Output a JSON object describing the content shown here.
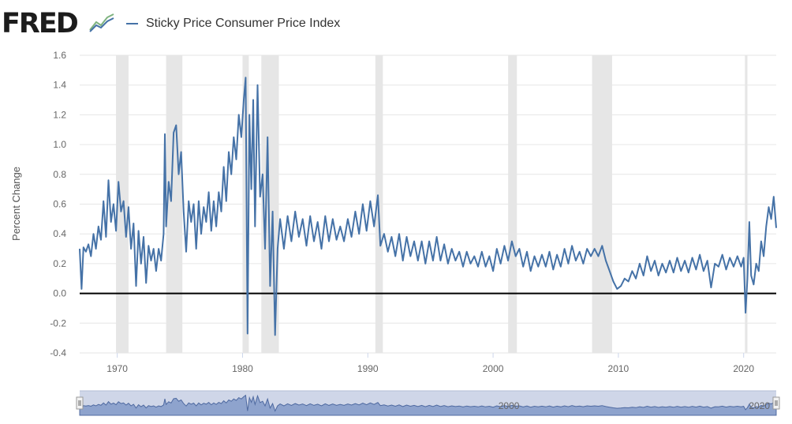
{
  "brand": {
    "logo_text": "FRED"
  },
  "colors": {
    "series": "#4572a7",
    "recession": "#e6e6e6",
    "zero_line": "#000000",
    "grid": "#e6e6e6",
    "navigator_bg": "#cfd6e8",
    "navigator_fill": "#7f97c7"
  },
  "chart_data": {
    "type": "line",
    "title": "",
    "xlabel": "",
    "ylabel": "Percent Change",
    "grid": true,
    "legend_position": "top-left",
    "xlim": [
      1967.0,
      2022.6
    ],
    "ylim": [
      -0.4,
      1.6
    ],
    "x_ticks": [
      1970,
      1980,
      1990,
      2000,
      2010,
      2020
    ],
    "y_ticks": [
      -0.4,
      -0.2,
      0.0,
      0.2,
      0.4,
      0.6,
      0.8,
      1.0,
      1.2,
      1.4,
      1.6
    ],
    "y_tick_labels": [
      "-0.4",
      "-0.2",
      "0.0",
      "0.2",
      "0.4",
      "0.6",
      "0.8",
      "1.0",
      "1.2",
      "1.4",
      "1.6"
    ],
    "recessions": [
      [
        1969.9,
        1970.9
      ],
      [
        1973.9,
        1975.2
      ],
      [
        1980.0,
        1980.5
      ],
      [
        1981.5,
        1982.9
      ],
      [
        1990.6,
        1991.2
      ],
      [
        2001.2,
        2001.9
      ],
      [
        2007.9,
        2009.5
      ],
      [
        2020.1,
        2020.3
      ]
    ],
    "navigator_labels": [
      "2000",
      "2020"
    ],
    "series": [
      {
        "name": "Sticky Price Consumer Price Index",
        "points": [
          [
            1967.0,
            0.3
          ],
          [
            1967.15,
            0.03
          ],
          [
            1967.3,
            0.31
          ],
          [
            1967.5,
            0.28
          ],
          [
            1967.7,
            0.33
          ],
          [
            1967.9,
            0.25
          ],
          [
            1968.1,
            0.4
          ],
          [
            1968.3,
            0.3
          ],
          [
            1968.5,
            0.45
          ],
          [
            1968.7,
            0.36
          ],
          [
            1968.9,
            0.62
          ],
          [
            1969.1,
            0.38
          ],
          [
            1969.3,
            0.76
          ],
          [
            1969.5,
            0.48
          ],
          [
            1969.7,
            0.6
          ],
          [
            1969.9,
            0.42
          ],
          [
            1970.1,
            0.75
          ],
          [
            1970.3,
            0.55
          ],
          [
            1970.5,
            0.62
          ],
          [
            1970.7,
            0.38
          ],
          [
            1970.9,
            0.58
          ],
          [
            1971.1,
            0.3
          ],
          [
            1971.3,
            0.47
          ],
          [
            1971.5,
            0.05
          ],
          [
            1971.7,
            0.42
          ],
          [
            1971.9,
            0.2
          ],
          [
            1972.1,
            0.38
          ],
          [
            1972.3,
            0.07
          ],
          [
            1972.5,
            0.32
          ],
          [
            1972.7,
            0.22
          ],
          [
            1972.9,
            0.3
          ],
          [
            1973.1,
            0.15
          ],
          [
            1973.3,
            0.3
          ],
          [
            1973.5,
            0.22
          ],
          [
            1973.7,
            0.4
          ],
          [
            1973.8,
            1.07
          ],
          [
            1973.9,
            0.45
          ],
          [
            1974.1,
            0.75
          ],
          [
            1974.3,
            0.62
          ],
          [
            1974.5,
            1.08
          ],
          [
            1974.7,
            1.13
          ],
          [
            1974.9,
            0.8
          ],
          [
            1975.1,
            0.95
          ],
          [
            1975.3,
            0.55
          ],
          [
            1975.5,
            0.28
          ],
          [
            1975.7,
            0.62
          ],
          [
            1975.9,
            0.48
          ],
          [
            1976.1,
            0.6
          ],
          [
            1976.3,
            0.3
          ],
          [
            1976.5,
            0.62
          ],
          [
            1976.7,
            0.4
          ],
          [
            1976.9,
            0.58
          ],
          [
            1977.1,
            0.48
          ],
          [
            1977.3,
            0.68
          ],
          [
            1977.5,
            0.42
          ],
          [
            1977.7,
            0.62
          ],
          [
            1977.9,
            0.45
          ],
          [
            1978.1,
            0.68
          ],
          [
            1978.3,
            0.55
          ],
          [
            1978.5,
            0.85
          ],
          [
            1978.7,
            0.62
          ],
          [
            1978.9,
            0.95
          ],
          [
            1979.1,
            0.8
          ],
          [
            1979.3,
            1.05
          ],
          [
            1979.5,
            0.9
          ],
          [
            1979.7,
            1.2
          ],
          [
            1979.9,
            1.05
          ],
          [
            1980.1,
            1.3
          ],
          [
            1980.25,
            1.45
          ],
          [
            1980.4,
            -0.27
          ],
          [
            1980.55,
            1.2
          ],
          [
            1980.7,
            0.7
          ],
          [
            1980.85,
            1.3
          ],
          [
            1981.0,
            0.45
          ],
          [
            1981.2,
            1.4
          ],
          [
            1981.4,
            0.65
          ],
          [
            1981.6,
            0.8
          ],
          [
            1981.8,
            0.3
          ],
          [
            1982.0,
            1.05
          ],
          [
            1982.2,
            0.05
          ],
          [
            1982.4,
            0.55
          ],
          [
            1982.6,
            -0.28
          ],
          [
            1982.8,
            0.3
          ],
          [
            1983.0,
            0.5
          ],
          [
            1983.3,
            0.3
          ],
          [
            1983.6,
            0.52
          ],
          [
            1983.9,
            0.35
          ],
          [
            1984.2,
            0.55
          ],
          [
            1984.5,
            0.38
          ],
          [
            1984.8,
            0.5
          ],
          [
            1985.1,
            0.32
          ],
          [
            1985.4,
            0.52
          ],
          [
            1985.7,
            0.35
          ],
          [
            1986.0,
            0.48
          ],
          [
            1986.3,
            0.3
          ],
          [
            1986.6,
            0.52
          ],
          [
            1986.9,
            0.35
          ],
          [
            1987.2,
            0.5
          ],
          [
            1987.5,
            0.36
          ],
          [
            1987.8,
            0.45
          ],
          [
            1988.1,
            0.35
          ],
          [
            1988.4,
            0.5
          ],
          [
            1988.7,
            0.38
          ],
          [
            1989.0,
            0.55
          ],
          [
            1989.3,
            0.4
          ],
          [
            1989.6,
            0.6
          ],
          [
            1989.9,
            0.42
          ],
          [
            1990.2,
            0.62
          ],
          [
            1990.5,
            0.45
          ],
          [
            1990.8,
            0.66
          ],
          [
            1991.0,
            0.32
          ],
          [
            1991.3,
            0.4
          ],
          [
            1991.6,
            0.28
          ],
          [
            1991.9,
            0.38
          ],
          [
            1992.2,
            0.25
          ],
          [
            1992.5,
            0.4
          ],
          [
            1992.8,
            0.22
          ],
          [
            1993.1,
            0.38
          ],
          [
            1993.4,
            0.25
          ],
          [
            1993.7,
            0.35
          ],
          [
            1994.0,
            0.22
          ],
          [
            1994.3,
            0.35
          ],
          [
            1994.6,
            0.2
          ],
          [
            1994.9,
            0.35
          ],
          [
            1995.2,
            0.22
          ],
          [
            1995.5,
            0.38
          ],
          [
            1995.8,
            0.22
          ],
          [
            1996.1,
            0.33
          ],
          [
            1996.4,
            0.2
          ],
          [
            1996.7,
            0.3
          ],
          [
            1997.0,
            0.22
          ],
          [
            1997.3,
            0.28
          ],
          [
            1997.6,
            0.18
          ],
          [
            1997.9,
            0.28
          ],
          [
            1998.2,
            0.2
          ],
          [
            1998.5,
            0.25
          ],
          [
            1998.8,
            0.18
          ],
          [
            1999.1,
            0.28
          ],
          [
            1999.4,
            0.18
          ],
          [
            1999.7,
            0.25
          ],
          [
            2000.0,
            0.15
          ],
          [
            2000.3,
            0.3
          ],
          [
            2000.6,
            0.2
          ],
          [
            2000.9,
            0.32
          ],
          [
            2001.2,
            0.22
          ],
          [
            2001.5,
            0.35
          ],
          [
            2001.8,
            0.25
          ],
          [
            2002.1,
            0.3
          ],
          [
            2002.4,
            0.18
          ],
          [
            2002.7,
            0.28
          ],
          [
            2003.0,
            0.15
          ],
          [
            2003.3,
            0.25
          ],
          [
            2003.6,
            0.18
          ],
          [
            2003.9,
            0.26
          ],
          [
            2004.2,
            0.18
          ],
          [
            2004.5,
            0.28
          ],
          [
            2004.8,
            0.16
          ],
          [
            2005.1,
            0.26
          ],
          [
            2005.4,
            0.18
          ],
          [
            2005.7,
            0.3
          ],
          [
            2006.0,
            0.2
          ],
          [
            2006.3,
            0.32
          ],
          [
            2006.6,
            0.22
          ],
          [
            2006.9,
            0.28
          ],
          [
            2007.2,
            0.2
          ],
          [
            2007.5,
            0.3
          ],
          [
            2007.8,
            0.25
          ],
          [
            2008.1,
            0.3
          ],
          [
            2008.4,
            0.25
          ],
          [
            2008.7,
            0.32
          ],
          [
            2009.0,
            0.22
          ],
          [
            2009.3,
            0.15
          ],
          [
            2009.6,
            0.08
          ],
          [
            2009.9,
            0.03
          ],
          [
            2010.2,
            0.05
          ],
          [
            2010.5,
            0.1
          ],
          [
            2010.8,
            0.08
          ],
          [
            2011.1,
            0.15
          ],
          [
            2011.4,
            0.1
          ],
          [
            2011.7,
            0.2
          ],
          [
            2012.0,
            0.12
          ],
          [
            2012.3,
            0.25
          ],
          [
            2012.6,
            0.15
          ],
          [
            2012.9,
            0.22
          ],
          [
            2013.2,
            0.12
          ],
          [
            2013.5,
            0.2
          ],
          [
            2013.8,
            0.14
          ],
          [
            2014.1,
            0.22
          ],
          [
            2014.4,
            0.14
          ],
          [
            2014.7,
            0.24
          ],
          [
            2015.0,
            0.15
          ],
          [
            2015.3,
            0.22
          ],
          [
            2015.6,
            0.14
          ],
          [
            2015.9,
            0.24
          ],
          [
            2016.2,
            0.16
          ],
          [
            2016.5,
            0.26
          ],
          [
            2016.8,
            0.15
          ],
          [
            2017.1,
            0.22
          ],
          [
            2017.4,
            0.04
          ],
          [
            2017.7,
            0.2
          ],
          [
            2018.0,
            0.18
          ],
          [
            2018.3,
            0.26
          ],
          [
            2018.6,
            0.16
          ],
          [
            2018.9,
            0.24
          ],
          [
            2019.2,
            0.18
          ],
          [
            2019.5,
            0.25
          ],
          [
            2019.8,
            0.18
          ],
          [
            2020.0,
            0.24
          ],
          [
            2020.15,
            -0.13
          ],
          [
            2020.3,
            0.1
          ],
          [
            2020.45,
            0.48
          ],
          [
            2020.6,
            0.12
          ],
          [
            2020.8,
            0.06
          ],
          [
            2021.0,
            0.2
          ],
          [
            2021.2,
            0.15
          ],
          [
            2021.4,
            0.35
          ],
          [
            2021.6,
            0.25
          ],
          [
            2021.8,
            0.45
          ],
          [
            2022.0,
            0.58
          ],
          [
            2022.2,
            0.5
          ],
          [
            2022.4,
            0.65
          ],
          [
            2022.6,
            0.44
          ]
        ]
      }
    ]
  }
}
